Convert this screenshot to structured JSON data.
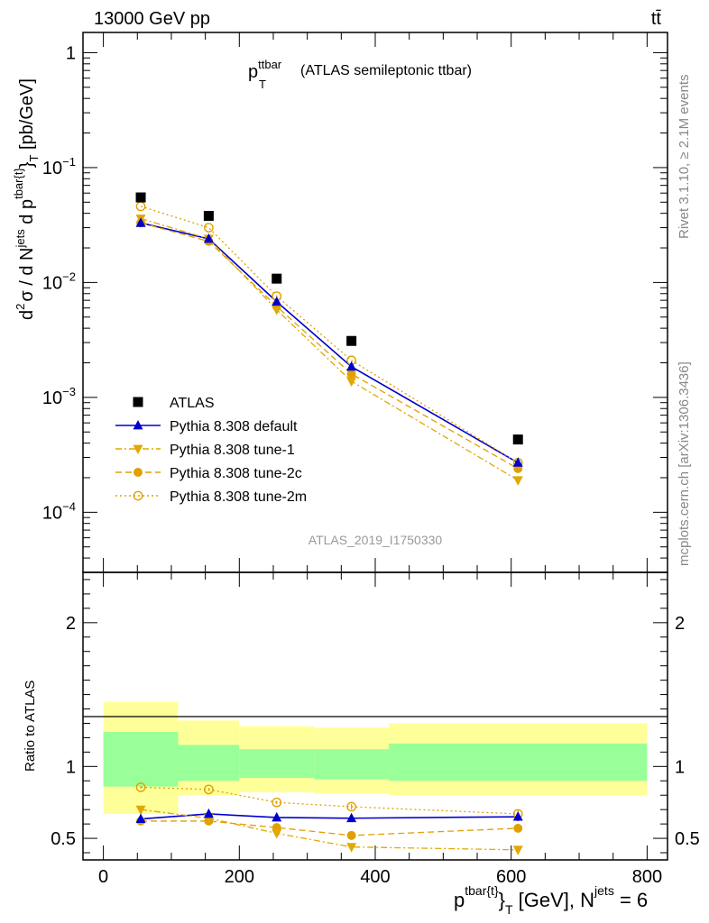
{
  "header": {
    "energy_label": "13000 GeV pp",
    "process_label": "tt̄"
  },
  "side_labels": {
    "rivet": "Rivet 3.1.10, ≥ 2.1M events",
    "source": "mcplots.cern.ch [arXiv:1306.3436]"
  },
  "chart_data": [
    {
      "type": "scatter",
      "panel": "main",
      "title_main": "p",
      "title_sup": "ttbar",
      "title_sub": "T",
      "title_rest": "(ATLAS semileptonic ttbar)",
      "watermark": "ATLAS_2019_I1750330",
      "ylabel": {
        "a": "d",
        "a_sup": "2",
        "b": "σ  /  d N",
        "b_sup": "jets",
        "c": " d p",
        "c_sup": "tbar{t}",
        "d": "}",
        "d_sub": "T",
        "e": " [pb/GeV]"
      },
      "yscale": "log",
      "ylim": [
        3e-05,
        1.5
      ],
      "xlim": [
        -30,
        830
      ],
      "y_ticks": [
        {
          "v": 1,
          "base": "1",
          "exp": ""
        },
        {
          "v": 0.1,
          "base": "10",
          "exp": "−1"
        },
        {
          "v": 0.01,
          "base": "10",
          "exp": "−2"
        },
        {
          "v": 0.001,
          "base": "10",
          "exp": "−3"
        },
        {
          "v": 0.0001,
          "base": "10",
          "exp": "−4"
        }
      ],
      "x": [
        55,
        155,
        255,
        365,
        610
      ],
      "series": [
        {
          "name": "ATLAS",
          "color": "#000000",
          "marker": "square",
          "line": "none",
          "values": [
            0.055,
            0.038,
            0.0108,
            0.0031,
            0.00043
          ]
        },
        {
          "name": "Pythia 8.308 default",
          "color": "#0000cc",
          "marker": "triangle-up",
          "line": "solid",
          "values": [
            0.033,
            0.024,
            0.0068,
            0.00185,
            0.00027
          ]
        },
        {
          "name": "Pythia 8.308 tune-1",
          "color": "#e0a800",
          "marker": "triangle-down",
          "line": "dashdot",
          "values": [
            0.036,
            0.024,
            0.0058,
            0.00138,
            0.00019
          ]
        },
        {
          "name": "Pythia 8.308 tune-2c",
          "color": "#e0a000",
          "marker": "circle",
          "line": "dashed",
          "values": [
            0.033,
            0.0228,
            0.0062,
            0.0016,
            0.00024
          ]
        },
        {
          "name": "Pythia 8.308 tune-2m",
          "color": "#e0a000",
          "marker": "circle-open",
          "line": "dotted",
          "values": [
            0.046,
            0.03,
            0.0076,
            0.0021,
            0.00027
          ]
        }
      ]
    },
    {
      "type": "scatter",
      "panel": "ratio",
      "ylabel": "Ratio to ATLAS",
      "ylim": [
        0.35,
        2.35
      ],
      "xlim": [
        -30,
        830
      ],
      "y_ticks": [
        {
          "v": 0.5,
          "label": "0.5"
        },
        {
          "v": 1,
          "label": "1"
        },
        {
          "v": 2,
          "label": "2"
        }
      ],
      "x_ticks": [
        {
          "v": 0,
          "label": "0"
        },
        {
          "v": 200,
          "label": "200"
        },
        {
          "v": 400,
          "label": "400"
        },
        {
          "v": 600,
          "label": "600"
        },
        {
          "v": 800,
          "label": "800"
        }
      ],
      "xlabel": {
        "a": "p",
        "a_sup": "tbar{t}",
        "b": "}",
        "b_sub": "T",
        "c": " [GeV], N",
        "c_sup": "jets",
        "d": " = 6"
      },
      "bins": [
        {
          "lo": 0,
          "hi": 110,
          "green": [
            0.86,
            1.24
          ],
          "yellow": [
            0.67,
            1.45
          ]
        },
        {
          "lo": 110,
          "hi": 200,
          "green": [
            0.9,
            1.15
          ],
          "yellow": [
            0.8,
            1.32
          ]
        },
        {
          "lo": 200,
          "hi": 310,
          "green": [
            0.92,
            1.12
          ],
          "yellow": [
            0.82,
            1.28
          ]
        },
        {
          "lo": 310,
          "hi": 420,
          "green": [
            0.91,
            1.12
          ],
          "yellow": [
            0.81,
            1.27
          ]
        },
        {
          "lo": 420,
          "hi": 800,
          "green": [
            0.9,
            1.16
          ],
          "yellow": [
            0.8,
            1.3
          ]
        }
      ],
      "x": [
        55,
        155,
        255,
        365,
        610
      ],
      "series": [
        {
          "name": "Pythia 8.308 default",
          "color": "#0000cc",
          "marker": "triangle-up",
          "line": "solid",
          "values": [
            0.635,
            0.67,
            0.645,
            0.64,
            0.65
          ],
          "errors": [
            0.01,
            0.01,
            0.012,
            0.018,
            0.03
          ]
        },
        {
          "name": "Pythia 8.308 tune-1",
          "color": "#e0a800",
          "marker": "triangle-down",
          "line": "dashdot",
          "values": [
            0.7,
            0.64,
            0.535,
            0.44,
            0.42
          ],
          "errors": [
            0.01,
            0.01,
            0.012,
            0.02,
            0.03
          ]
        },
        {
          "name": "Pythia 8.308 tune-2c",
          "color": "#e0a000",
          "marker": "circle",
          "line": "dashed",
          "values": [
            0.62,
            0.62,
            0.575,
            0.52,
            0.57
          ],
          "errors": [
            0.01,
            0.01,
            0.012,
            0.02,
            0.03
          ]
        },
        {
          "name": "Pythia 8.308 tune-2m",
          "color": "#e0a000",
          "marker": "circle-open",
          "line": "dotted",
          "values": [
            0.855,
            0.84,
            0.75,
            0.72,
            0.67
          ],
          "errors": [
            0.01,
            0.01,
            0.012,
            0.02,
            0.03
          ]
        }
      ]
    }
  ]
}
